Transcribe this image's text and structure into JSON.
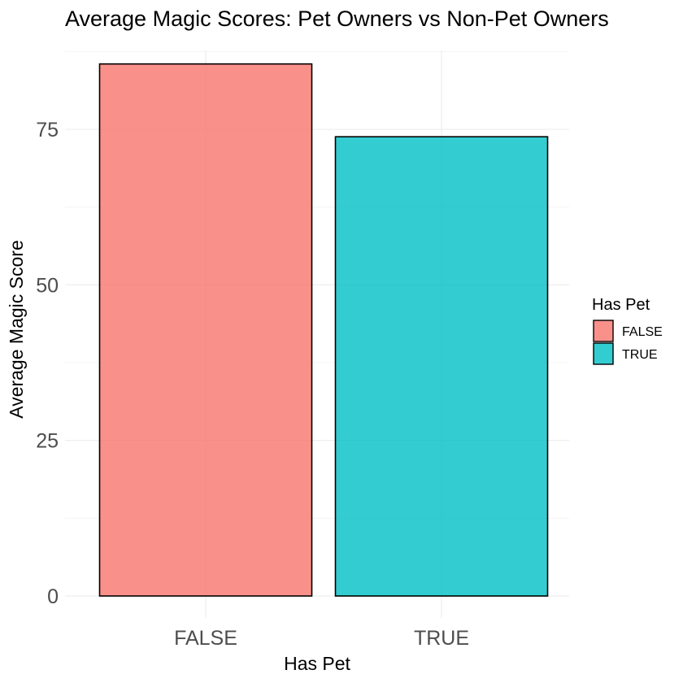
{
  "chart_data": {
    "type": "bar",
    "title": "Average Magic Scores: Pet Owners vs Non-Pet Owners",
    "xlabel": "Has Pet",
    "ylabel": "Average Magic Score",
    "categories": [
      "FALSE",
      "TRUE"
    ],
    "values": [
      85.5,
      73.8
    ],
    "colors": [
      "#F8766D",
      "#00BFC4"
    ],
    "bar_outline": "#000000",
    "ylim": [
      0,
      90
    ],
    "yticks": [
      0,
      25,
      50,
      75
    ],
    "grid": true,
    "legend": {
      "title": "Has Pet",
      "position": "right",
      "items": [
        {
          "label": "FALSE",
          "color": "#F8766D"
        },
        {
          "label": "TRUE",
          "color": "#00BFC4"
        }
      ]
    }
  }
}
